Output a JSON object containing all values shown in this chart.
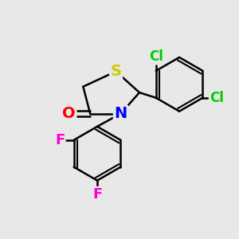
{
  "background_color": "#e8e8e8",
  "bond_color": "#000000",
  "bond_width": 1.8,
  "atom_labels": {
    "S": {
      "color": "#cccc00",
      "fontsize": 14,
      "fontweight": "bold"
    },
    "N": {
      "color": "#0000ff",
      "fontsize": 14,
      "fontweight": "bold"
    },
    "O": {
      "color": "#ff0000",
      "fontsize": 14,
      "fontweight": "bold"
    },
    "Cl": {
      "color": "#00cc00",
      "fontsize": 12,
      "fontweight": "bold"
    },
    "F": {
      "color": "#ff00cc",
      "fontsize": 13,
      "fontweight": "bold"
    }
  },
  "figsize": [
    3.0,
    3.0
  ],
  "dpi": 100
}
